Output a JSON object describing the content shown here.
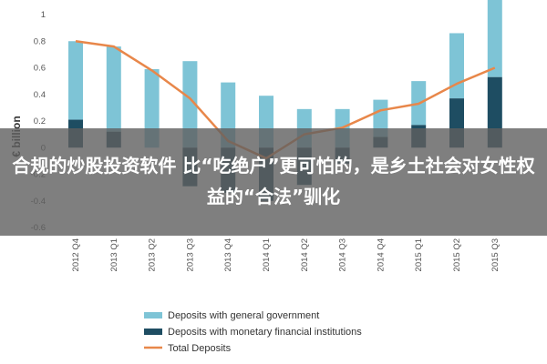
{
  "chart_data": {
    "type": "bar",
    "ylabel": "€ billion",
    "ylim": [
      -0.6,
      1.0
    ],
    "yticks": [
      "-0.6",
      "-0.4",
      "-0.2",
      "0",
      "0.2",
      "0.4",
      "0.6",
      "0.8",
      "1"
    ],
    "categories": [
      "2012 Q4",
      "2013 Q1",
      "2013 Q2",
      "2013 Q3",
      "2013 Q4",
      "2014 Q1",
      "2014 Q2",
      "2014 Q3",
      "2014 Q4",
      "2015 Q1",
      "2015 Q2",
      "2015 Q3"
    ],
    "series": [
      {
        "name": "Deposits with general government",
        "kind": "bar",
        "color": "#7ec4d6",
        "values": [
          0.59,
          0.64,
          0.59,
          0.65,
          0.49,
          0.39,
          0.29,
          0.29,
          0.28,
          0.33,
          0.49,
          0.6
        ]
      },
      {
        "name": "Deposits with monetary financial institutions",
        "kind": "bar",
        "color": "#1e4d62",
        "values": [
          0.21,
          0.12,
          0.0,
          -0.29,
          -0.34,
          -0.4,
          -0.28,
          -0.12,
          0.08,
          0.17,
          0.37,
          0.53
        ]
      },
      {
        "name": "Total Deposits",
        "kind": "line",
        "color": "#e8874a",
        "values": [
          0.8,
          0.76,
          0.58,
          0.37,
          0.05,
          -0.08,
          0.1,
          0.15,
          0.28,
          0.33,
          0.48,
          0.6
        ]
      }
    ],
    "legend_position": "bottom",
    "grid": false
  },
  "overlay": {
    "caption": "合规的炒股投资软件 比“吃绝户”更可怕的，是乡土社会对女性权益的“合法”驯化"
  }
}
